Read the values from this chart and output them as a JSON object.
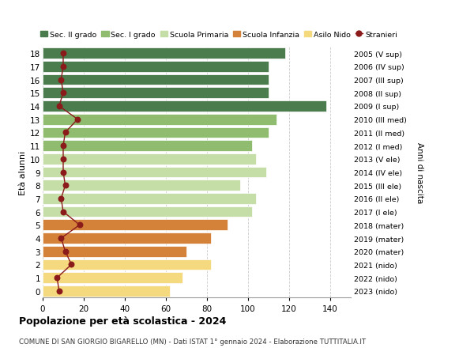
{
  "ages": [
    0,
    1,
    2,
    3,
    4,
    5,
    6,
    7,
    8,
    9,
    10,
    11,
    12,
    13,
    14,
    15,
    16,
    17,
    18
  ],
  "bar_values": [
    62,
    68,
    82,
    70,
    82,
    90,
    102,
    104,
    96,
    109,
    104,
    102,
    110,
    114,
    138,
    110,
    110,
    110,
    118
  ],
  "stranieri": [
    8,
    7,
    14,
    11,
    9,
    18,
    10,
    9,
    11,
    10,
    10,
    10,
    11,
    17,
    8,
    10,
    9,
    10,
    10
  ],
  "anni_nascita": [
    "2023 (nido)",
    "2022 (nido)",
    "2021 (nido)",
    "2020 (mater)",
    "2019 (mater)",
    "2018 (mater)",
    "2017 (I ele)",
    "2016 (II ele)",
    "2015 (III ele)",
    "2014 (IV ele)",
    "2013 (V ele)",
    "2012 (I med)",
    "2011 (II med)",
    "2010 (III med)",
    "2009 (I sup)",
    "2008 (II sup)",
    "2007 (III sup)",
    "2006 (IV sup)",
    "2005 (V sup)"
  ],
  "colors": {
    "sec2": "#4a7c4e",
    "sec1": "#8fbc6e",
    "primaria": "#c5dea8",
    "infanzia": "#d4813a",
    "nido": "#f5d97e",
    "stranieri": "#8b1a1a"
  },
  "bar_colors": [
    "#f5d97e",
    "#f5d97e",
    "#f5d97e",
    "#d4813a",
    "#d4813a",
    "#d4813a",
    "#c5dea8",
    "#c5dea8",
    "#c5dea8",
    "#c5dea8",
    "#c5dea8",
    "#8fbc6e",
    "#8fbc6e",
    "#8fbc6e",
    "#4a7c4e",
    "#4a7c4e",
    "#4a7c4e",
    "#4a7c4e",
    "#4a7c4e"
  ],
  "title": "Popolazione per età scolastica - 2024",
  "subtitle": "COMUNE DI SAN GIORGIO BIGARELLO (MN) - Dati ISTAT 1° gennaio 2024 - Elaborazione TUTTITALIA.IT",
  "xlabel_right": "Anni di nascita",
  "ylabel": "Età alunni",
  "xlim": [
    0,
    150
  ],
  "xticks": [
    0,
    20,
    40,
    60,
    80,
    100,
    120,
    140
  ],
  "legend_labels": [
    "Sec. II grado",
    "Sec. I grado",
    "Scuola Primaria",
    "Scuola Infanzia",
    "Asilo Nido",
    "Stranieri"
  ],
  "legend_colors": [
    "#4a7c4e",
    "#8fbc6e",
    "#c5dea8",
    "#d4813a",
    "#f5d97e",
    "#8b1a1a"
  ],
  "bg_color": "#ffffff",
  "grid_color": "#cccccc"
}
